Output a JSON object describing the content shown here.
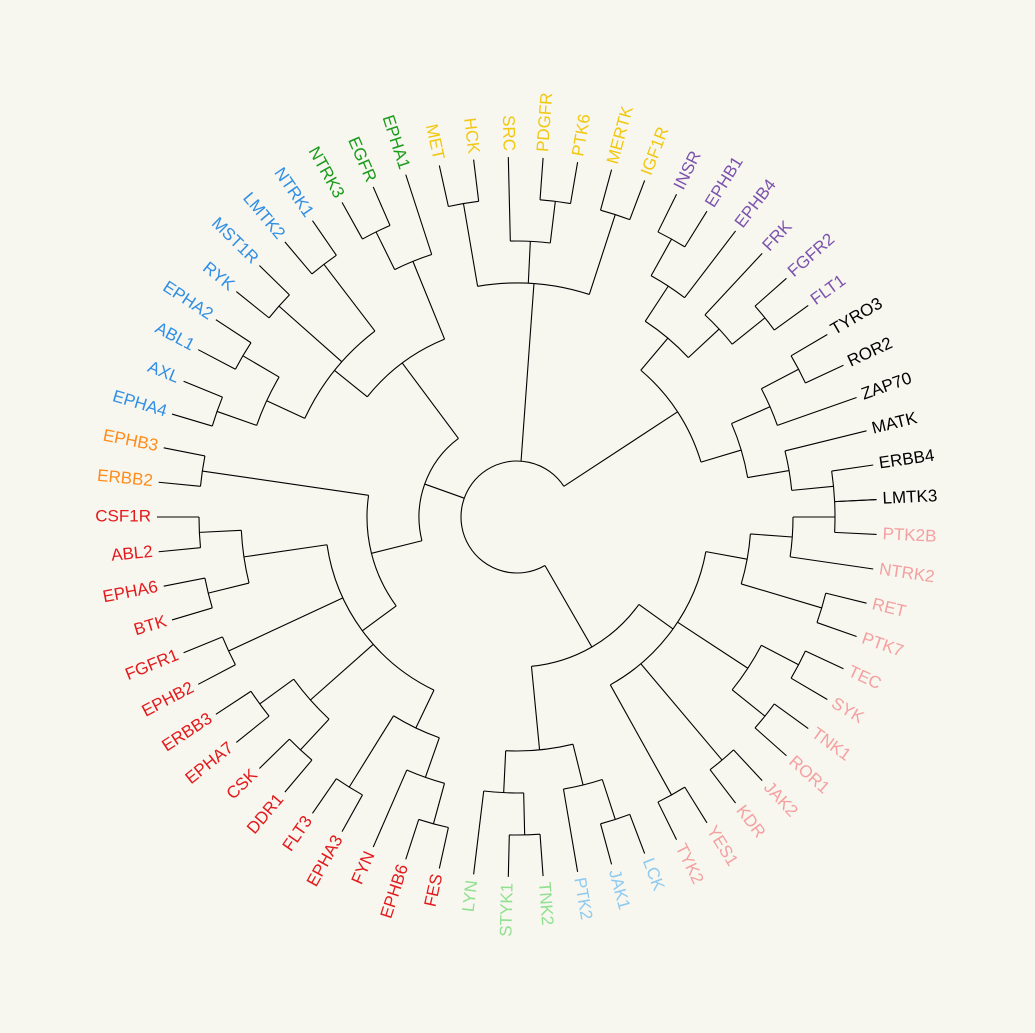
{
  "leaves": [
    {
      "label": "LMTK3",
      "color": "#000000"
    },
    {
      "label": "ERBB4",
      "color": "#000000"
    },
    {
      "label": "MATK",
      "color": "#000000"
    },
    {
      "label": "ZAP70",
      "color": "#000000"
    },
    {
      "label": "ROR2",
      "color": "#000000"
    },
    {
      "label": "TYRO3",
      "color": "#000000"
    },
    {
      "label": "FLT1",
      "color": "#7b52ae"
    },
    {
      "label": "FGFR2",
      "color": "#7b52ae"
    },
    {
      "label": "FRK",
      "color": "#7b52ae"
    },
    {
      "label": "EPHB4",
      "color": "#7b52ae"
    },
    {
      "label": "EPHB1",
      "color": "#7b52ae"
    },
    {
      "label": "INSR",
      "color": "#7b52ae"
    },
    {
      "label": "IGF1R",
      "color": "#f2c80f"
    },
    {
      "label": "MERTK",
      "color": "#f2c80f"
    },
    {
      "label": "PTK6",
      "color": "#f2c80f"
    },
    {
      "label": "PDGFR",
      "color": "#f2c80f"
    },
    {
      "label": "SRC",
      "color": "#f2c80f"
    },
    {
      "label": "HCK",
      "color": "#f2c80f"
    },
    {
      "label": "MET",
      "color": "#f2c80f"
    },
    {
      "label": "EPHA1",
      "color": "#1a9b1a"
    },
    {
      "label": "EGFR",
      "color": "#1a9b1a"
    },
    {
      "label": "NTRK3",
      "color": "#1a9b1a"
    },
    {
      "label": "NTRK1",
      "color": "#2f8ee5"
    },
    {
      "label": "LMTK2",
      "color": "#2f8ee5"
    },
    {
      "label": "MST1R",
      "color": "#2f8ee5"
    },
    {
      "label": "RYK",
      "color": "#2f8ee5"
    },
    {
      "label": "EPHA2",
      "color": "#2f8ee5"
    },
    {
      "label": "ABL1",
      "color": "#2f8ee5"
    },
    {
      "label": "AXL",
      "color": "#2f8ee5"
    },
    {
      "label": "EPHA4",
      "color": "#2f8ee5"
    },
    {
      "label": "EPHB3",
      "color": "#ff8c1a"
    },
    {
      "label": "ERBB2",
      "color": "#ff8c1a"
    },
    {
      "label": "CSF1R",
      "color": "#e31a1c"
    },
    {
      "label": "ABL2",
      "color": "#e31a1c"
    },
    {
      "label": "EPHA6",
      "color": "#e31a1c"
    },
    {
      "label": "BTK",
      "color": "#e31a1c"
    },
    {
      "label": "FGFR1",
      "color": "#e31a1c"
    },
    {
      "label": "EPHB2",
      "color": "#e31a1c"
    },
    {
      "label": "ERBB3",
      "color": "#e31a1c"
    },
    {
      "label": "EPHA7",
      "color": "#e31a1c"
    },
    {
      "label": "CSK",
      "color": "#e31a1c"
    },
    {
      "label": "DDR1",
      "color": "#e31a1c"
    },
    {
      "label": "FLT3",
      "color": "#e31a1c"
    },
    {
      "label": "EPHA3",
      "color": "#e31a1c"
    },
    {
      "label": "FYN",
      "color": "#e31a1c"
    },
    {
      "label": "EPHB6",
      "color": "#e31a1c"
    },
    {
      "label": "FES",
      "color": "#e31a1c"
    },
    {
      "label": "LYN",
      "color": "#90e090"
    },
    {
      "label": "STYK1",
      "color": "#90e090"
    },
    {
      "label": "TNK2",
      "color": "#90e090"
    },
    {
      "label": "PTK2",
      "color": "#8ecaf0"
    },
    {
      "label": "JAK1",
      "color": "#8ecaf0"
    },
    {
      "label": "LCK",
      "color": "#8ecaf0"
    },
    {
      "label": "TYK2",
      "color": "#f4a0a0"
    },
    {
      "label": "YES1",
      "color": "#f4a0a0"
    },
    {
      "label": "KDR",
      "color": "#f4a0a0"
    },
    {
      "label": "JAK2",
      "color": "#f4a0a0"
    },
    {
      "label": "ROR1",
      "color": "#f4a0a0"
    },
    {
      "label": "TNK1",
      "color": "#f4a0a0"
    },
    {
      "label": "SYK",
      "color": "#f4a0a0"
    },
    {
      "label": "TEC",
      "color": "#f4a0a0"
    },
    {
      "label": "PTK7",
      "color": "#f4a0a0"
    },
    {
      "label": "RET",
      "color": "#f4a0a0"
    },
    {
      "label": "NTRK2",
      "color": "#f4a0a0"
    },
    {
      "label": "PTK2B",
      "color": "#f4a0a0"
    }
  ]
}
